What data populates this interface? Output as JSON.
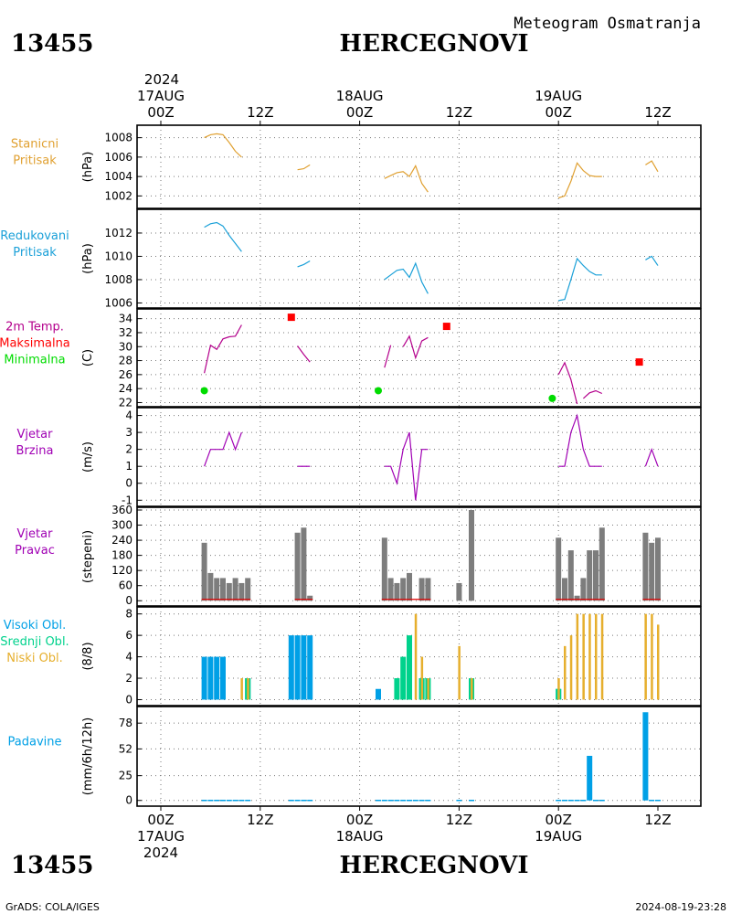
{
  "header": {
    "station_id": "13455",
    "station_name": "HERCEGNOVI",
    "subtitle": "Meteogram Osmatranja",
    "year": "2024"
  },
  "footer": {
    "station_id": "13455",
    "station_name": "HERCEGNOVI",
    "credit": "GrADS: COLA/IGES",
    "timestamp": "2024-08-19-23:28"
  },
  "time_axis": {
    "hour_ticks": [
      "00Z",
      "12Z",
      "00Z",
      "12Z",
      "00Z",
      "12Z"
    ],
    "day_labels": [
      "17AUG",
      "18AUG",
      "19AUG"
    ],
    "year": "2024"
  },
  "colors": {
    "station_pressure": "#e0a030",
    "reduced_pressure": "#1aa0d8",
    "temperature": "#b4008c",
    "tmax": "#ff0000",
    "tmin": "#00dc00",
    "wind": "#a000b4",
    "direction_bar": "#7d7d7d",
    "direction_speed": "#e00000",
    "cloud_high": "#00a0e6",
    "cloud_mid": "#00d28c",
    "cloud_low": "#e6af2d",
    "precip": "#00a0e6"
  },
  "chart_data": [
    {
      "type": "line",
      "name": "pressure-station",
      "label_lines": [
        "Stanicni",
        "Pritisak"
      ],
      "ylabel": "(hPa)",
      "ylim": [
        1001,
        1009
      ],
      "yticks": [
        1002,
        1004,
        1006,
        1008
      ],
      "segments": [
        {
          "x": [
            7,
            8,
            9,
            10,
            11,
            12,
            13
          ],
          "y": [
            1008,
            1008.3,
            1008.4,
            1008.3,
            1007.5,
            1006.6,
            1006
          ]
        },
        {
          "x": [
            22,
            23,
            24
          ],
          "y": [
            1004.7,
            1004.8,
            1005.2
          ]
        },
        {
          "x": [
            36,
            37,
            38,
            39,
            40,
            41,
            42,
            43
          ],
          "y": [
            1003.8,
            1004.1,
            1004.4,
            1004.5,
            1004,
            1005.1,
            1003.3,
            1002.4
          ]
        },
        {
          "x": [
            64,
            65,
            66,
            67,
            68,
            69,
            70,
            71
          ],
          "y": [
            1001.8,
            1002,
            1003.5,
            1005.4,
            1004.6,
            1004.1,
            1004,
            1004
          ]
        },
        {
          "x": [
            78,
            79,
            80
          ],
          "y": [
            1005.2,
            1005.6,
            1004.5
          ]
        }
      ]
    },
    {
      "type": "line",
      "name": "pressure-reduced",
      "label_lines": [
        "Redukovani",
        "Pritisak"
      ],
      "ylabel": "(hPa)",
      "ylim": [
        1005.8,
        1013.8
      ],
      "yticks": [
        1006,
        1008,
        1010,
        1012
      ],
      "segments": [
        {
          "x": [
            7,
            8,
            9,
            10,
            11,
            12,
            13
          ],
          "y": [
            1012.5,
            1012.8,
            1012.9,
            1012.6,
            1011.8,
            1011.1,
            1010.4
          ]
        },
        {
          "x": [
            22,
            23,
            24
          ],
          "y": [
            1009.1,
            1009.3,
            1009.6
          ]
        },
        {
          "x": [
            36,
            37,
            38,
            39,
            40,
            41,
            42,
            43
          ],
          "y": [
            1008,
            1008.4,
            1008.8,
            1008.9,
            1008.2,
            1009.4,
            1007.8,
            1006.8
          ]
        },
        {
          "x": [
            64,
            65,
            66,
            67,
            68,
            69,
            70,
            71
          ],
          "y": [
            1006.2,
            1006.3,
            1008,
            1009.8,
            1009.2,
            1008.7,
            1008.4,
            1008.4
          ]
        },
        {
          "x": [
            78,
            79,
            80
          ],
          "y": [
            1009.7,
            1010,
            1009.2
          ]
        }
      ]
    },
    {
      "type": "line",
      "name": "temperature",
      "label_lines": [
        "2m Temp.",
        "Maksimalna",
        "Minimalna"
      ],
      "ylabel": "(C)",
      "ylim": [
        21.8,
        35
      ],
      "yticks": [
        22,
        24,
        26,
        28,
        30,
        32,
        34
      ],
      "segments": [
        {
          "x": [
            7,
            8,
            9,
            10,
            11,
            12,
            13
          ],
          "y": [
            26.2,
            30.2,
            29.6,
            31.1,
            31.4,
            31.5,
            33.1
          ]
        },
        {
          "x": [
            22,
            23,
            24
          ],
          "y": [
            30.1,
            28.9,
            27.8
          ]
        },
        {
          "x": [
            36,
            37
          ],
          "y": [
            27,
            30.2
          ]
        },
        {
          "x": [
            39,
            40,
            41,
            42,
            43
          ],
          "y": [
            30,
            31.5,
            28.4,
            30.8,
            31.3
          ]
        },
        {
          "x": [
            64,
            65,
            66,
            67
          ],
          "y": [
            26,
            27.7,
            25.3,
            21.8
          ]
        },
        {
          "x": [
            68,
            69,
            70,
            71
          ],
          "y": [
            22.6,
            23.4,
            23.7,
            23.3
          ]
        }
      ],
      "tmax": [
        {
          "x": 21,
          "y": 34.2
        },
        {
          "x": 46,
          "y": 32.9
        },
        {
          "x": 77,
          "y": 27.8
        }
      ],
      "tmin": [
        {
          "x": 7,
          "y": 23.7
        },
        {
          "x": 35,
          "y": 23.7
        },
        {
          "x": 63,
          "y": 22.6
        }
      ]
    },
    {
      "type": "line",
      "name": "wind-speed",
      "label_lines": [
        "Vjetar",
        "Brzina"
      ],
      "ylabel": "(m/s)",
      "ylim": [
        -1.2,
        4.3
      ],
      "yticks": [
        -1,
        0,
        1,
        2,
        3,
        4
      ],
      "segments": [
        {
          "x": [
            7,
            8,
            9,
            10,
            11,
            12,
            13
          ],
          "y": [
            1,
            2,
            2,
            2,
            3,
            2,
            3
          ]
        },
        {
          "x": [
            22,
            23,
            24
          ],
          "y": [
            1,
            1,
            1
          ]
        },
        {
          "x": [
            36,
            37,
            38,
            39,
            40,
            41,
            42,
            43
          ],
          "y": [
            1,
            1,
            0,
            2,
            3,
            -1,
            2,
            2
          ]
        },
        {
          "x": [
            64,
            65,
            66,
            67,
            68,
            69,
            70,
            71
          ],
          "y": [
            1,
            1,
            3,
            4,
            2,
            1,
            1,
            1
          ]
        },
        {
          "x": [
            78,
            79,
            80
          ],
          "y": [
            1,
            2,
            1
          ]
        }
      ]
    },
    {
      "type": "bar",
      "name": "wind-direction",
      "label_lines": [
        "Vjetar",
        "Pravac"
      ],
      "ylabel": "(stepeni)",
      "ylim": [
        -10,
        360
      ],
      "yticks": [
        0,
        60,
        120,
        180,
        240,
        300,
        360
      ],
      "bars": [
        {
          "x": 7,
          "value": 230
        },
        {
          "x": 8,
          "value": 110
        },
        {
          "x": 9,
          "value": 90
        },
        {
          "x": 10,
          "value": 90
        },
        {
          "x": 11,
          "value": 70
        },
        {
          "x": 12,
          "value": 90
        },
        {
          "x": 13,
          "value": 70
        },
        {
          "x": 14,
          "value": 90
        },
        {
          "x": 22,
          "value": 270
        },
        {
          "x": 23,
          "value": 290
        },
        {
          "x": 24,
          "value": 20
        },
        {
          "x": 36,
          "value": 250
        },
        {
          "x": 37,
          "value": 90
        },
        {
          "x": 38,
          "value": 70
        },
        {
          "x": 39,
          "value": 90
        },
        {
          "x": 40,
          "value": 110
        },
        {
          "x": 42,
          "value": 90
        },
        {
          "x": 43,
          "value": 90
        },
        {
          "x": 48,
          "value": 70
        },
        {
          "x": 50,
          "value": 360
        },
        {
          "x": 64,
          "value": 250
        },
        {
          "x": 65,
          "value": 90
        },
        {
          "x": 66,
          "value": 200
        },
        {
          "x": 67,
          "value": 20
        },
        {
          "x": 68,
          "value": 90
        },
        {
          "x": 69,
          "value": 200
        },
        {
          "x": 70,
          "value": 200
        },
        {
          "x": 71,
          "value": 290
        },
        {
          "x": 78,
          "value": 270
        },
        {
          "x": 79,
          "value": 230
        },
        {
          "x": 80,
          "value": 250
        }
      ]
    },
    {
      "type": "bar",
      "name": "cloud-cover",
      "label_lines": [
        "Visoki Obl.",
        "Srednji Obl.",
        "Niski Obl."
      ],
      "ylabel": "(8/8)",
      "ylim": [
        -0.3,
        8.4
      ],
      "yticks": [
        0,
        2,
        4,
        6,
        8
      ],
      "high": [
        {
          "x": 7,
          "value": 4
        },
        {
          "x": 8,
          "value": 4
        },
        {
          "x": 9,
          "value": 4
        },
        {
          "x": 10,
          "value": 4
        },
        {
          "x": 14,
          "value": 2
        },
        {
          "x": 21,
          "value": 6
        },
        {
          "x": 22,
          "value": 6
        },
        {
          "x": 23,
          "value": 6
        },
        {
          "x": 24,
          "value": 6
        },
        {
          "x": 35,
          "value": 1
        },
        {
          "x": 42,
          "value": 2
        },
        {
          "x": 64,
          "value": 1
        }
      ],
      "mid": [
        {
          "x": 14,
          "value": 2
        },
        {
          "x": 38,
          "value": 2
        },
        {
          "x": 39,
          "value": 4
        },
        {
          "x": 40,
          "value": 6
        },
        {
          "x": 42,
          "value": 2
        },
        {
          "x": 43,
          "value": 2
        },
        {
          "x": 50,
          "value": 2
        },
        {
          "x": 64,
          "value": 1
        }
      ],
      "low": [
        {
          "x": 13,
          "value": 2
        },
        {
          "x": 14,
          "value": 2
        },
        {
          "x": 41,
          "value": 8
        },
        {
          "x": 42,
          "value": 4
        },
        {
          "x": 43,
          "value": 2
        },
        {
          "x": 48,
          "value": 5
        },
        {
          "x": 50,
          "value": 2
        },
        {
          "x": 64,
          "value": 2
        },
        {
          "x": 65,
          "value": 5
        },
        {
          "x": 66,
          "value": 6
        },
        {
          "x": 67,
          "value": 8
        },
        {
          "x": 68,
          "value": 8
        },
        {
          "x": 69,
          "value": 8
        },
        {
          "x": 70,
          "value": 8
        },
        {
          "x": 71,
          "value": 8
        },
        {
          "x": 78,
          "value": 8
        },
        {
          "x": 79,
          "value": 8
        },
        {
          "x": 80,
          "value": 7
        }
      ]
    },
    {
      "type": "bar",
      "name": "precipitation",
      "label_lines": [
        "Padavine"
      ],
      "ylabel": "(mm/6h/12h)",
      "ylim": [
        -3,
        92
      ],
      "yticks": [
        0,
        25,
        52,
        78
      ],
      "bars": [
        {
          "x": 69,
          "value": 45
        },
        {
          "x": 78,
          "value": 89
        }
      ],
      "zero_x": [
        7,
        8,
        9,
        10,
        11,
        12,
        13,
        14,
        21,
        22,
        23,
        24,
        35,
        36,
        37,
        38,
        39,
        40,
        41,
        42,
        43,
        48,
        50,
        64,
        65,
        66,
        67,
        68,
        70,
        71,
        79,
        80
      ]
    }
  ]
}
